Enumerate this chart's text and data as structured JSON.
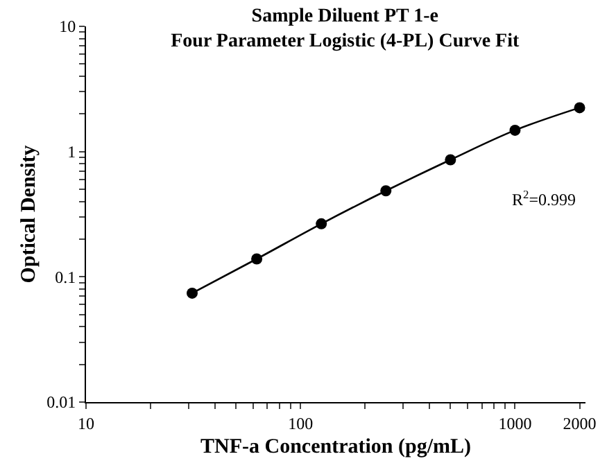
{
  "chart_data": {
    "type": "scatter",
    "title": "Sample Diluent PT 1-e\nFour Parameter Logistic (4-PL) Curve Fit",
    "xlabel": "TNF-a Concentration (pg/mL)",
    "ylabel": "Optical Density",
    "x": [
      31.25,
      62.5,
      125,
      250,
      500,
      1000,
      2000
    ],
    "series": [
      {
        "color": "#000000",
        "values": [
          0.074,
          0.139,
          0.265,
          0.486,
          0.86,
          1.48,
          2.24
        ]
      },
      {
        "type": "line",
        "color": "#000000",
        "x": [
          31.25,
          62.5,
          125,
          250,
          500,
          1000,
          2000
        ],
        "values": [
          0.074,
          0.139,
          0.265,
          0.486,
          0.86,
          1.48,
          2.24
        ]
      }
    ],
    "log": "xy",
    "xlim": [
      10,
      2130
    ],
    "ylim": [
      0.01,
      10
    ],
    "xticks": [
      10,
      {
        "value": 20,
        "label": null
      },
      {
        "value": 30,
        "label": null
      },
      {
        "value": 40,
        "label": null
      },
      {
        "value": 50,
        "label": null
      },
      {
        "value": 60,
        "label": null
      },
      {
        "value": 70,
        "label": null
      },
      {
        "value": 80,
        "label": null
      },
      {
        "value": 90,
        "label": null
      },
      100,
      {
        "value": 200,
        "label": null
      },
      {
        "value": 300,
        "label": null
      },
      {
        "value": 400,
        "label": null
      },
      {
        "value": 500,
        "label": null
      },
      {
        "value": 600,
        "label": null
      },
      {
        "value": 700,
        "label": null
      },
      {
        "value": 800,
        "label": null
      },
      {
        "value": 900,
        "label": null
      },
      1000,
      2000
    ],
    "yticks": [
      0.01,
      {
        "value": 0.02,
        "label": null
      },
      {
        "value": 0.03,
        "label": null
      },
      {
        "value": 0.04,
        "label": null
      },
      {
        "value": 0.05,
        "label": null
      },
      {
        "value": 0.06,
        "label": null
      },
      {
        "value": 0.07,
        "label": null
      },
      {
        "value": 0.08,
        "label": null
      },
      {
        "value": 0.09,
        "label": null
      },
      0.1,
      {
        "value": 0.2,
        "label": null
      },
      {
        "value": 0.3,
        "label": null
      },
      {
        "value": 0.4,
        "label": null
      },
      {
        "value": 0.5,
        "label": null
      },
      {
        "value": 0.6,
        "label": null
      },
      {
        "value": 0.7,
        "label": null
      },
      {
        "value": 0.8,
        "label": null
      },
      {
        "value": 0.9,
        "label": null
      },
      1,
      {
        "value": 2,
        "label": null
      },
      {
        "value": 3,
        "label": null
      },
      {
        "value": 4,
        "label": null
      },
      {
        "value": 5,
        "label": null
      },
      {
        "value": 6,
        "label": null
      },
      {
        "value": 7,
        "label": null
      },
      {
        "value": 8,
        "label": null
      },
      {
        "value": 9,
        "label": null
      },
      10
    ],
    "annotations": [
      "R$^{2}$=0.999"
    ]
  }
}
